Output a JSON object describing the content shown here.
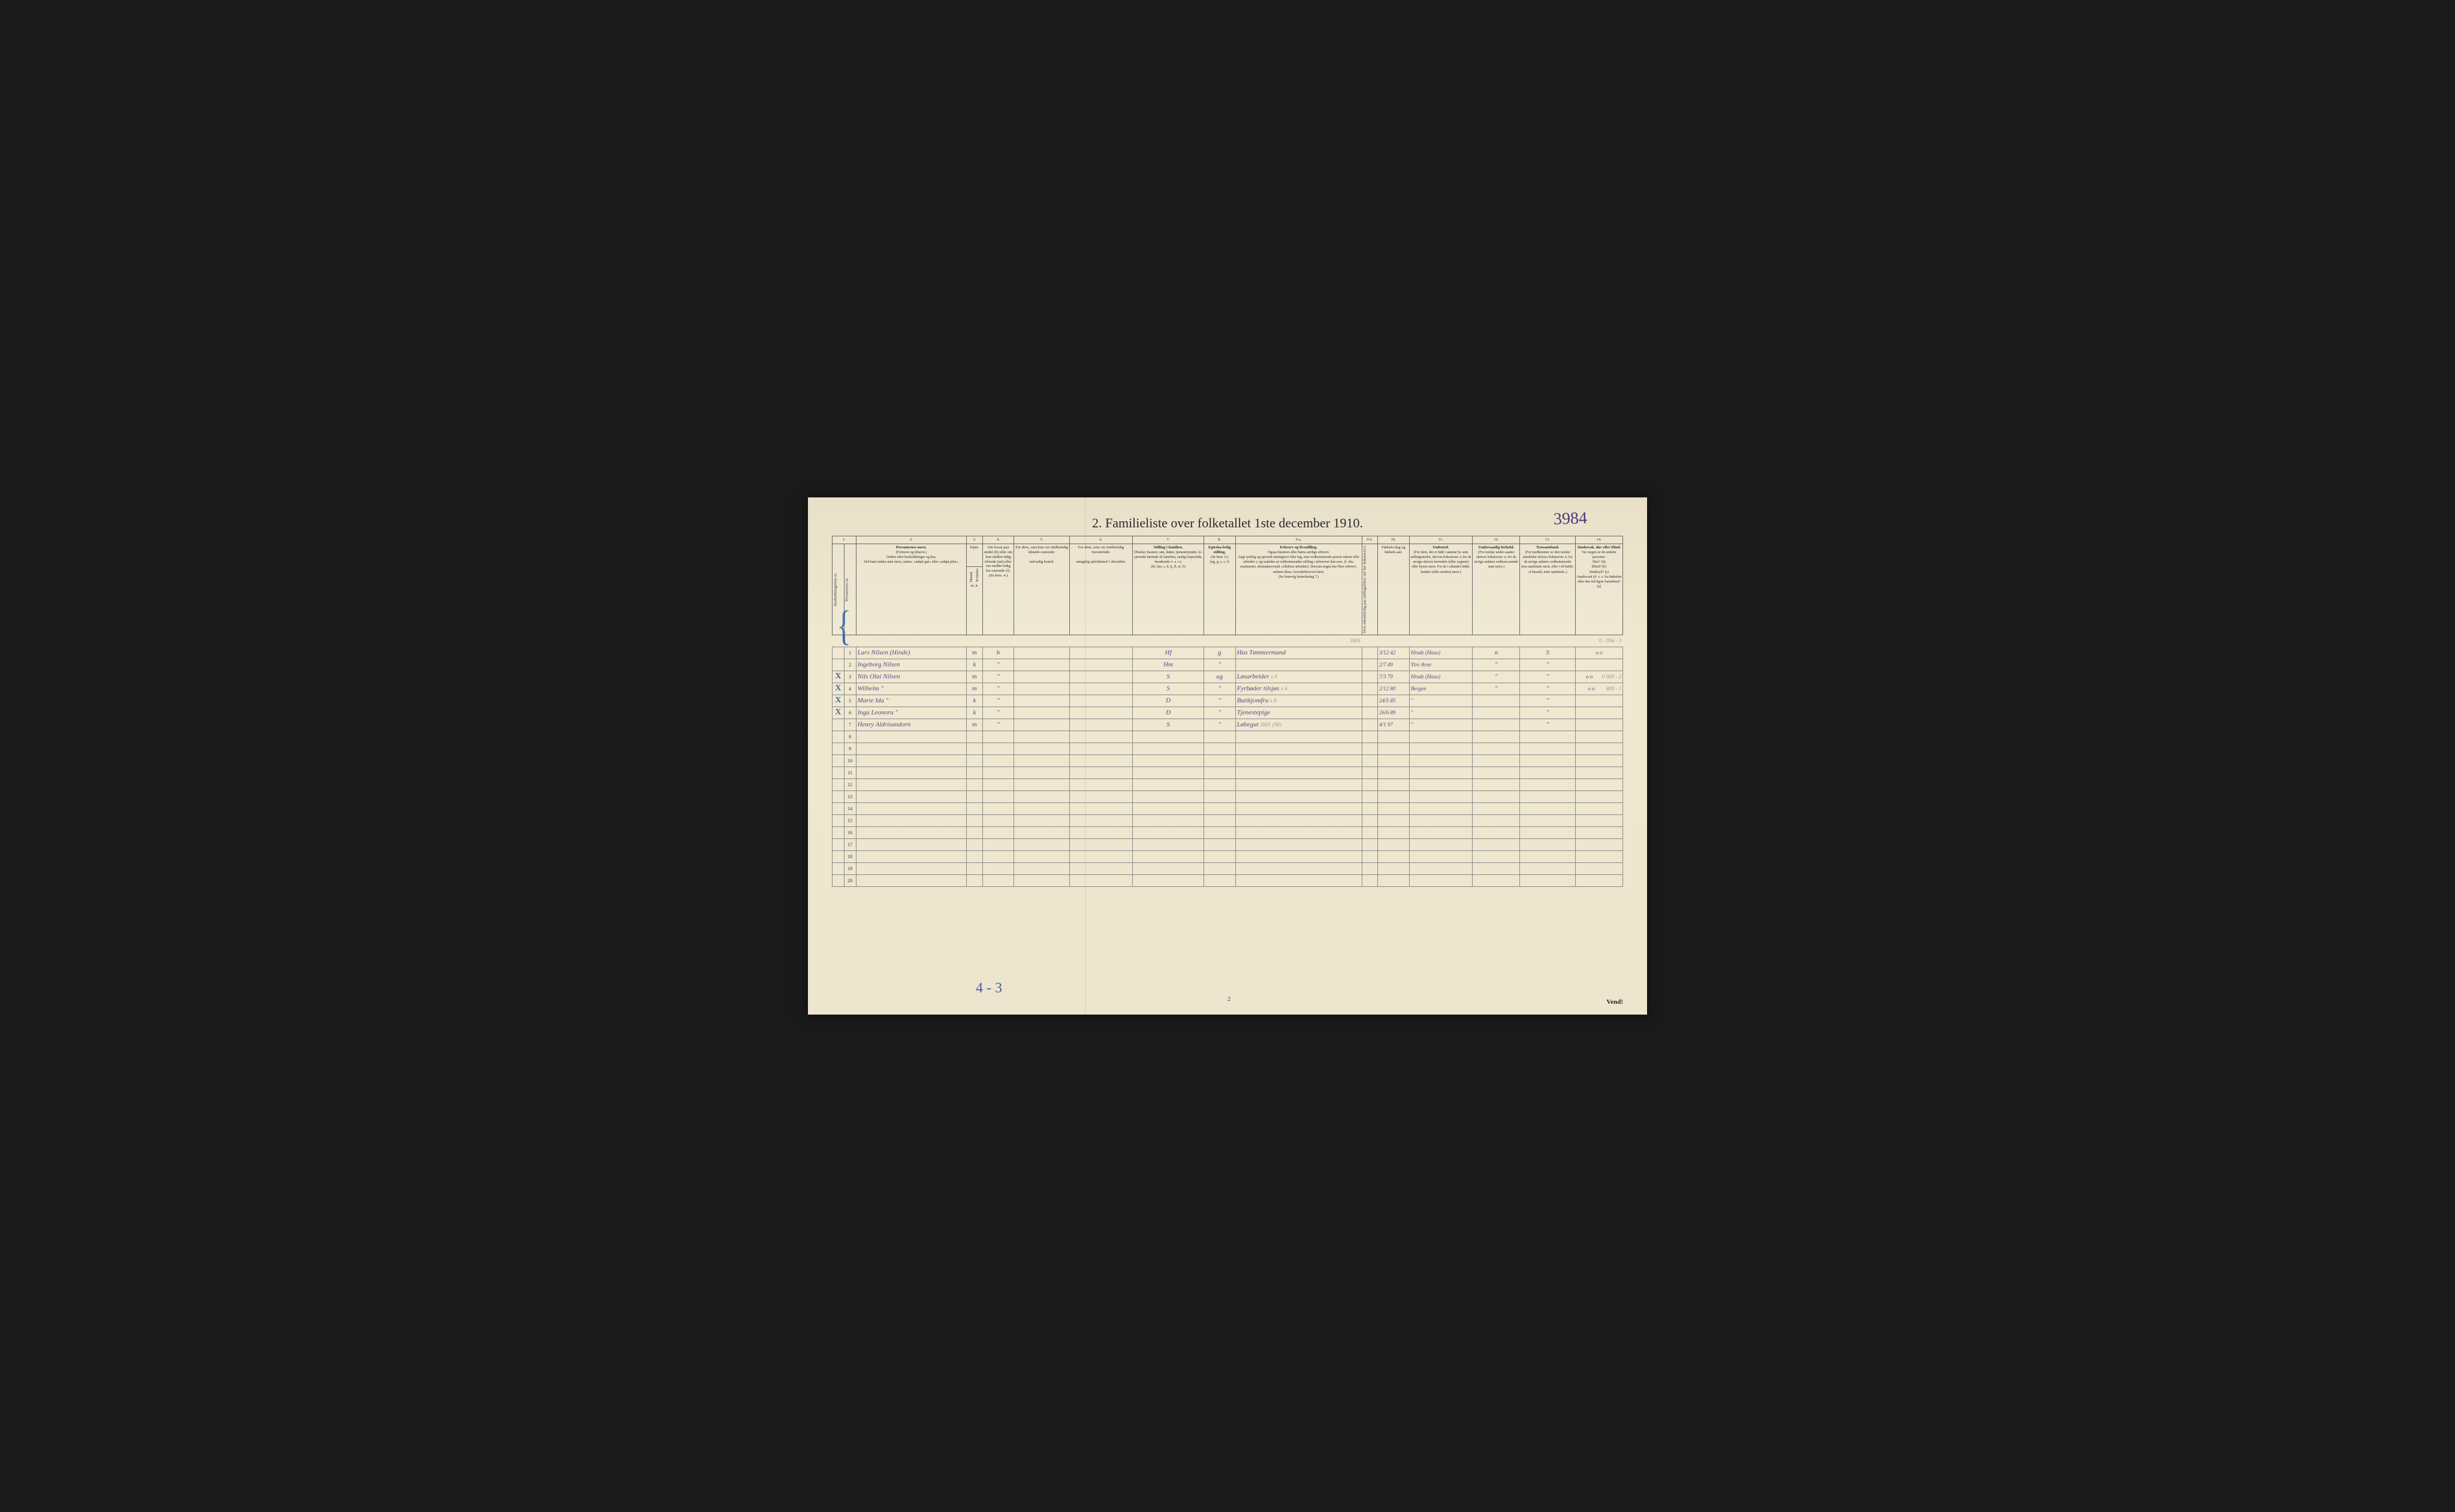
{
  "colors": {
    "paper_bg": "#ede5cd",
    "ink_printed": "#2a2a2a",
    "ink_handwritten": "#5a4a8a",
    "ink_blue": "#3a6aaa",
    "pencil": "#999999",
    "border": "#666666"
  },
  "title": {
    "prefix": "2.",
    "main": "Familieliste over folketallet 1ste december 1910.",
    "handwritten_number": "3984"
  },
  "column_numbers": [
    "1.",
    "2.",
    "3.",
    "4.",
    "5.",
    "6.",
    "7.",
    "8.",
    "9 a.",
    "9 b.",
    "10.",
    "11.",
    "12.",
    "13.",
    "14."
  ],
  "headers": {
    "col1": "Husholdningernes nr.",
    "col1b": "Personernes nr.",
    "col2_title": "Personernes navn.",
    "col2_sub1": "(Fornavn og tilnavn.)",
    "col2_sub2": "Ordnet efter husholdninger og hus.",
    "col2_sub3": "Ved barn endnu uten navn, sættes: «udøpt gut» eller «udøpt pike».",
    "col3_title": "Kjøn.",
    "col3_m": "Mænd.",
    "col3_k": "Kvinder.",
    "col3_mk": "m.  k.",
    "col4_title": "Om bosat paa stedet (b) eller om kun midler-tidig tilstede (mt) eller om midler-tidig fra-værende (f). (Se bem. 4.)",
    "col5_title": "For dem, som kun var midlertidig tilstede-værende:",
    "col5_sub": "sedvanlig bosted.",
    "col6_title": "For dem, som var midlertidig fraværende:",
    "col6_sub": "antagelig opholdssted 1 december.",
    "col7_title": "Stilling i familien.",
    "col7_sub1": "(Husfar, husmor, søn, datter, tjenestetyende, lo-sjerende hørende til familien, enslig losjerende, besøkende o. s. v.)",
    "col7_sub2": "(hf, hm, s, d, tj, fl, el, b)",
    "col8_title": "Egteska-belig stilling.",
    "col8_sub1": "(Se bem. 6.)",
    "col8_sub2": "(ug, g, e, s, f)",
    "col9a_title": "Erhverv og livsstilling.",
    "col9a_sub1": "Ogsaa husmors eller barns særlige erhverv.",
    "col9a_sub2": "Angi tydelig og specielt næringsvei eller fag, som vedkommende person utøver eller arbeider i, og saaledes at vedkommendes stilling i erhvervet kan sees. (f. eks. murmester, skomakersvend, cellulose-arbeider). Dersom nogen har flere erhverv, anføres disse, hovederhvervet først.",
    "col9a_sub3": "(Se forøvrig bemerkning 7.)",
    "col9b_title": "Hvis arbeidsledig paa tællingstiden; sæt her bokstaven l.",
    "col10_title": "Fødsels-dag og fødsels-aar.",
    "col11_title": "Fødested.",
    "col11_sub1": "(For dem, der er født i samme by som tællingsstedet, skrives bokstaven: t; for de øvrige skrives herredets (eller sognets) eller byens navn. For de i utlandet fødte: landets (eller stedets) navn.)",
    "col12_title": "Undersaatlig forhold.",
    "col12_sub1": "(For norske under-saatter skrives bokstaven: n; for de øvrige anføres vedkom-mende stats navn.)",
    "col13_title": "Trossamfund.",
    "col13_sub1": "(For medlemmer av den norske statskirke skrives bokstaven: s; for de øvrige anføres vedkommende tros-samfunds navn, eller i til-fælde: «Uttraadt, intet samfund».)",
    "col14_title": "Sindssvak, døv eller blind.",
    "col14_sub1": "Var nogen av de anførte personer:",
    "col14_sub2": "Døv? (d)\nBlind? (b)\nSindssyk? (s)\nAandssvak (d. v. s. fra fødselen eller den tid-ligste barndom)? (a)"
  },
  "pencil_header_note": "3901",
  "rows": [
    {
      "num": "1",
      "mark": "",
      "name": "Lars Nilsen (Hinde)",
      "sex": "m",
      "resident": "b",
      "family_pos": "Hf",
      "marital": "g",
      "occupation": "Hus Tømmermand",
      "birth": "3/12 42",
      "birthplace": "Hinde (Haus)",
      "nationality": "n",
      "religion": "S",
      "col14": "o   o",
      "top_pencil": "0 - 956 - 1"
    },
    {
      "num": "2",
      "mark": "",
      "name": "Ingeborg Nilsen",
      "sex": "k",
      "resident": "\"",
      "family_pos": "Hm",
      "marital": "\"",
      "occupation": "",
      "birth": "2/7 49",
      "birthplace": "Ytre Arne",
      "nationality": "\"",
      "religion": "\"",
      "col14": ""
    },
    {
      "num": "3",
      "mark": "X",
      "name": "Nils Olai Nilsen",
      "sex": "m",
      "resident": "\"",
      "family_pos": "S",
      "marital": "ug",
      "occupation": "Løsarbeider",
      "occ_pencil": "x 9",
      "birth": "7/3 79",
      "birthplace": "Hinde (Haus)",
      "nationality": "\"",
      "religion": "\"",
      "col14": "o   o",
      "top_pencil": "0  900 - 2"
    },
    {
      "num": "4",
      "mark": "X",
      "name": "Wilhelm      \"",
      "sex": "m",
      "resident": "\"",
      "family_pos": "S",
      "marital": "\"",
      "occupation": "Fyrbøder tilsjøs",
      "occ_pencil": "x 6",
      "birth": "2/12 80",
      "birthplace": "Bergen",
      "nationality": "\"",
      "religion": "\"",
      "col14": "o   o",
      "top_pencil": "800 - 1"
    },
    {
      "num": "5",
      "mark": "X",
      "name": "Marie Ida   \"",
      "sex": "k",
      "resident": "\"",
      "family_pos": "D",
      "marital": "\"",
      "occupation": "Butikjomfru",
      "occ_pencil": "x 8",
      "birth": "24/5 85",
      "birthplace": "\"",
      "nationality": "",
      "religion": "\"",
      "col14": ""
    },
    {
      "num": "6",
      "mark": "X",
      "name": "Inga Leonora \"",
      "sex": "k",
      "resident": "\"",
      "family_pos": "D",
      "marital": "\"",
      "occupation": "Tjenestepige",
      "birth": "26/6 89",
      "birthplace": "\"",
      "nationality": "",
      "religion": "\"",
      "col14": ""
    },
    {
      "num": "7",
      "mark": "",
      "name": "Henry Aldrisandorn",
      "sex": "m",
      "resident": "\"",
      "family_pos": "S",
      "marital": "\"",
      "occupation": "Løbegut",
      "occ_pencil": "3901 (98)",
      "birth": "4/1 97",
      "birthplace": "\"",
      "nationality": "",
      "religion": "\"",
      "col14": ""
    }
  ],
  "empty_rows": [
    "8",
    "9",
    "10",
    "11",
    "12",
    "13",
    "14",
    "15",
    "16",
    "17",
    "18",
    "19",
    "20"
  ],
  "footer": {
    "handwritten_note": "4 - 3",
    "page_number": "2",
    "vend": "Vend!"
  }
}
